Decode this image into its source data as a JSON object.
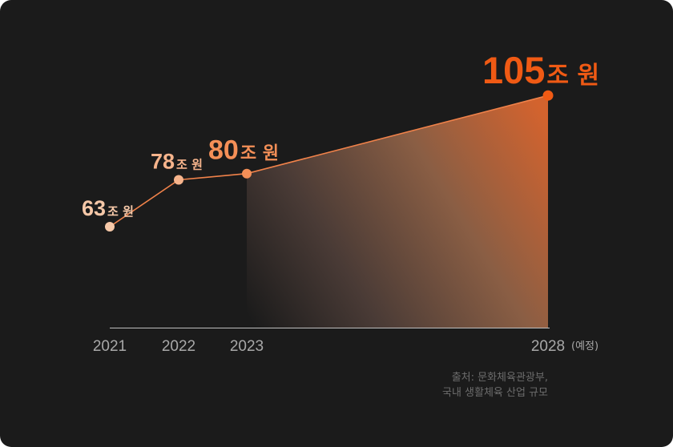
{
  "chart_data": {
    "type": "area",
    "categories": [
      "2021",
      "2022",
      "2023",
      "2028"
    ],
    "x_suffix": "(예정)",
    "values": [
      63,
      78,
      80,
      105
    ],
    "unit": "조 원",
    "colors": {
      "background": "#1b1b1b",
      "point_2021": "#f6c8a8",
      "point_2022": "#f6b48c",
      "point_2023": "#f48f57",
      "point_2028": "#f05a14",
      "line": "#f0824a",
      "axis": "#bfbfbf",
      "tick_label": "#a8a8a8"
    }
  },
  "source": {
    "line1": "출처: 문화체육관광부,",
    "line2": "국내 생활체육 산업 규모"
  }
}
